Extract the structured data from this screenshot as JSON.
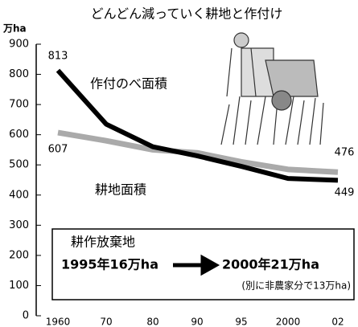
{
  "chart_data": {
    "type": "line",
    "title": "どんどん減っていく耕地と作付け",
    "y_unit": "万ha",
    "categories": [
      "1960",
      "70",
      "80",
      "90",
      "95",
      "2000",
      "02"
    ],
    "series": [
      {
        "name": "作付のべ面積",
        "color": "#000000",
        "values": [
          813,
          635,
          560,
          530,
          495,
          455,
          449
        ]
      },
      {
        "name": "耕地面積",
        "color": "#aaaaaa",
        "values": [
          607,
          580,
          550,
          540,
          510,
          485,
          476
        ]
      }
    ],
    "ylim": [
      0,
      900
    ],
    "yticks": [
      0,
      100,
      200,
      300,
      400,
      500,
      600,
      700,
      800,
      900
    ],
    "grid": false,
    "annotation": {
      "title": "耕作放棄地",
      "from": "1995年16万ha",
      "to": "2000年21万ha",
      "note": "(別に非農家分で13万ha)"
    }
  }
}
